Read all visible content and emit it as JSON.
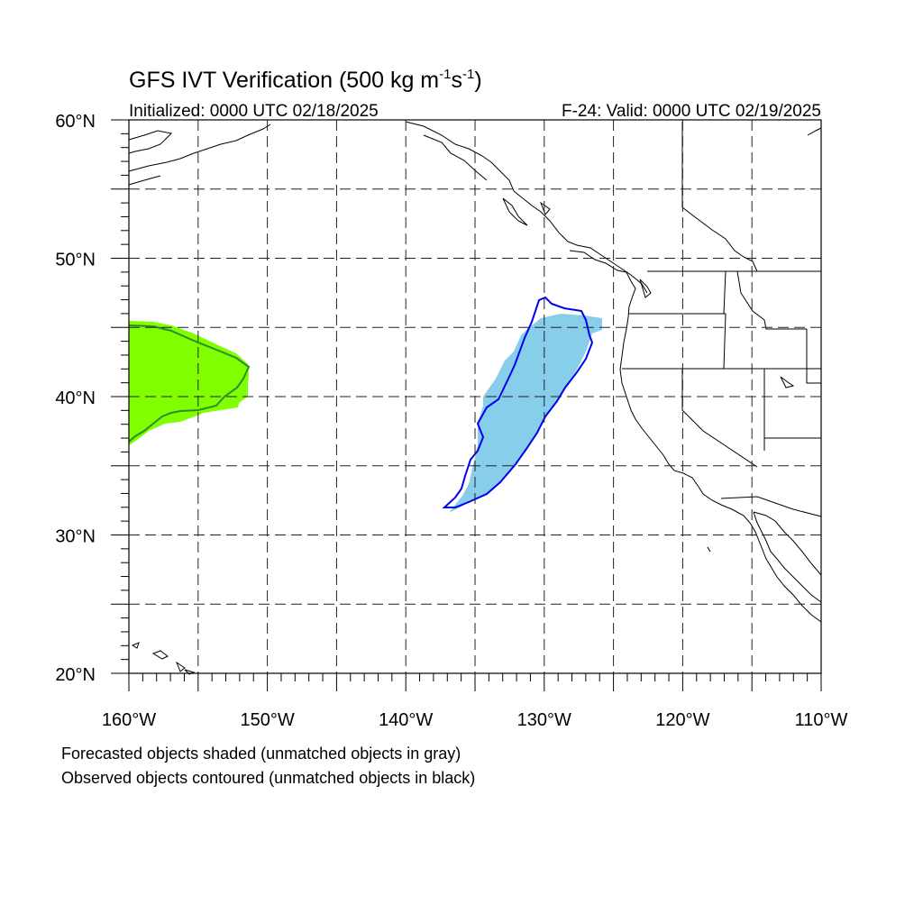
{
  "title_main": "GFS IVT Verification (500 kg m",
  "title_exp1": "-1",
  "title_mid": "s",
  "title_exp2": "-1",
  "title_end": ")",
  "initialized": "Initialized: 0000 UTC 02/18/2025",
  "valid": "F-24: Valid: 0000 UTC 02/19/2025",
  "footnote_forecast": "Forecasted objects shaded (unmatched objects in gray)",
  "footnote_observed": "Observed objects contoured (unmatched objects in black)",
  "map": {
    "lon_range": [
      -160,
      -110
    ],
    "lat_range": [
      20,
      60
    ],
    "lon_labels": [
      {
        "lon": -160,
        "label": "160°W"
      },
      {
        "lon": -150,
        "label": "150°W"
      },
      {
        "lon": -140,
        "label": "140°W"
      },
      {
        "lon": -130,
        "label": "130°W"
      },
      {
        "lon": -120,
        "label": "120°W"
      },
      {
        "lon": -110,
        "label": "110°W"
      }
    ],
    "lat_labels": [
      {
        "lat": 60,
        "label": "60°N"
      },
      {
        "lat": 50,
        "label": "50°N"
      },
      {
        "lat": 40,
        "label": "40°N"
      },
      {
        "lat": 30,
        "label": "30°N"
      },
      {
        "lat": 20,
        "label": "20°N"
      }
    ],
    "grid_lons": [
      -155,
      -150,
      -145,
      -140,
      -135,
      -130,
      -125,
      -120,
      -115
    ],
    "grid_lats": [
      25,
      30,
      35,
      40,
      45,
      50,
      55
    ],
    "grid_style": "dashed",
    "colors": {
      "green_shade": "#7fff00",
      "green_contour": "#2e8b2e",
      "blue_shade": "#87ceeb",
      "blue_contour": "#0000ee"
    }
  }
}
